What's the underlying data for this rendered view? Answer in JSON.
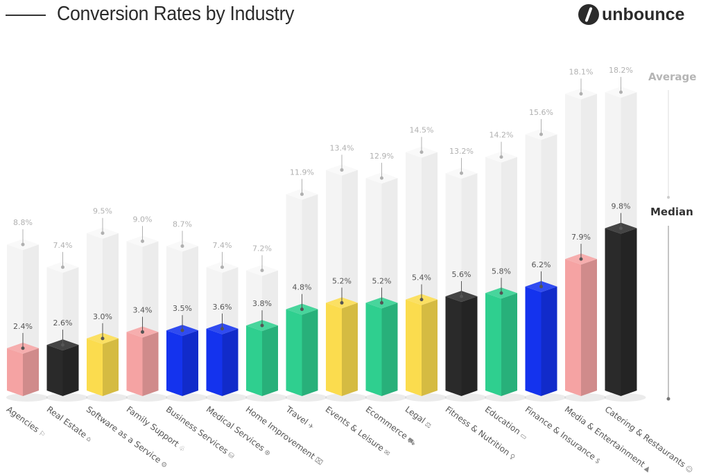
{
  "header": {
    "title": "Conversion Rates by Industry",
    "logo_text": "unbounce"
  },
  "chart_data": {
    "type": "bar",
    "title": "Conversion Rates by Industry",
    "categories": [
      "Agencies",
      "Real Estate",
      "Software as a Service",
      "Family Support",
      "Business Services",
      "Medical Services",
      "Home Improvement",
      "Travel",
      "Events & Leisure",
      "Ecommerce",
      "Legal",
      "Fitness & Nutrition",
      "Education",
      "Finance & Insurance",
      "Media & Entertainment",
      "Catering & Restaurants"
    ],
    "category_icons": [
      "megaphone-icon",
      "house-icon",
      "gear-icon",
      "family-icon",
      "briefcase-icon",
      "medical-icon",
      "toolbox-icon",
      "airplane-icon",
      "ticket-icon",
      "cart-icon",
      "gavel-icon",
      "dumbbell-icon",
      "book-icon",
      "dollar-icon",
      "play-icon",
      "food-icon"
    ],
    "icon_glyphs": [
      "⚐",
      "⌂",
      "⚙",
      "♧",
      "⛁",
      "⊕",
      "⌧",
      "✈",
      "✉",
      "⛟",
      "⚖",
      "♀",
      "▭",
      "$",
      "▲",
      "☺"
    ],
    "series": [
      {
        "name": "Average",
        "values": [
          8.8,
          7.4,
          9.5,
          9.0,
          8.7,
          7.4,
          7.2,
          11.9,
          13.4,
          12.9,
          14.5,
          13.2,
          14.2,
          15.6,
          18.1,
          18.2
        ],
        "color": "#f3f3f3"
      },
      {
        "name": "Median",
        "values": [
          2.4,
          2.6,
          3.0,
          3.4,
          3.5,
          3.6,
          3.8,
          4.8,
          5.2,
          5.2,
          5.4,
          5.6,
          5.8,
          6.2,
          7.9,
          9.8
        ]
      }
    ],
    "labels": {
      "average": [
        "8.8%",
        "7.4%",
        "9.5%",
        "9.0%",
        "8.7%",
        "7.4%",
        "7.2%",
        "11.9%",
        "13.4%",
        "12.9%",
        "14.5%",
        "13.2%",
        "14.2%",
        "15.6%",
        "18.1%",
        "18.2%"
      ],
      "median": [
        "2.4%",
        "2.6%",
        "3.0%",
        "3.4%",
        "3.5%",
        "3.6%",
        "3.8%",
        "4.8%",
        "5.2%",
        "5.2%",
        "5.4%",
        "5.6%",
        "5.8%",
        "6.2%",
        "7.9%",
        "9.8%"
      ]
    },
    "median_colors": [
      "#f5a3a3",
      "#2a2a2a",
      "#fbdc4e",
      "#f5a3a3",
      "#1433ee",
      "#1433ee",
      "#2fcf8f",
      "#2fcf8f",
      "#fbdc4e",
      "#2fcf8f",
      "#fbdc4e",
      "#2a2a2a",
      "#2fcf8f",
      "#1433ee",
      "#f5a3a3",
      "#2a2a2a"
    ],
    "legend": {
      "average": "Average",
      "median": "Median",
      "placement": "right"
    },
    "ylabel": "",
    "xlabel": "",
    "grid": false
  }
}
